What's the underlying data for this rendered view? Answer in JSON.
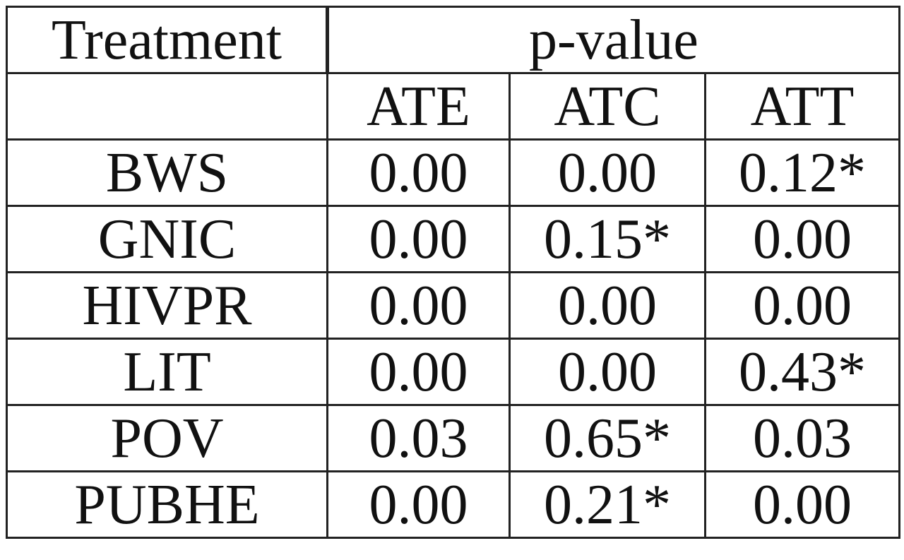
{
  "table": {
    "header": {
      "treatment": "Treatment",
      "group": "p-value"
    },
    "columns": [
      "ATE",
      "ATC",
      "ATT"
    ],
    "rows": [
      [
        "BWS",
        "0.00",
        "0.00",
        "0.12*"
      ],
      [
        "GNIC",
        "0.00",
        "0.15*",
        "0.00"
      ],
      [
        "HIVPR",
        "0.00",
        "0.00",
        "0.00"
      ],
      [
        "LIT",
        "0.00",
        "0.00",
        "0.43*"
      ],
      [
        "POV",
        "0.03",
        "0.65*",
        "0.03"
      ],
      [
        "PUBHE",
        "0.00",
        "0.21*",
        "0.00"
      ]
    ]
  }
}
